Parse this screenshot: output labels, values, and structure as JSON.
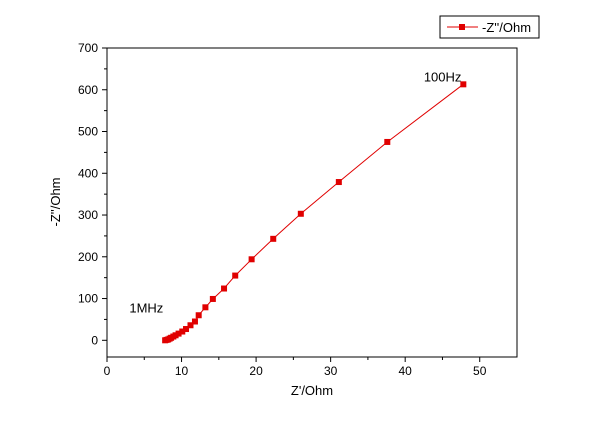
{
  "chart_data": {
    "type": "line",
    "xlabel": "Z'/Ohm",
    "ylabel": "-Z''/Ohm",
    "xlim": [
      0,
      55
    ],
    "ylim": [
      -40,
      700
    ],
    "x_ticks": [
      0,
      10,
      20,
      30,
      40,
      50
    ],
    "y_ticks": [
      0,
      100,
      200,
      300,
      400,
      500,
      600,
      700
    ],
    "grid": false,
    "legend_position": "top-right",
    "series": [
      {
        "name": "-Z''/Ohm",
        "color": "#e00000",
        "marker": "square",
        "x": [
          7.8,
          8.0,
          8.2,
          8.4,
          8.6,
          8.9,
          9.2,
          9.6,
          10.1,
          10.6,
          11.2,
          11.8,
          12.3,
          13.2,
          14.2,
          15.7,
          17.2,
          19.4,
          22.3,
          26.0,
          31.1,
          37.6,
          47.8
        ],
        "y": [
          0,
          1,
          2,
          4,
          6,
          9,
          12,
          16,
          21,
          27,
          36,
          45,
          60,
          79,
          99,
          124,
          155,
          194,
          243,
          303,
          379,
          475,
          613
        ]
      }
    ],
    "annotations": [
      {
        "label": "1MHz",
        "x": 3.0,
        "y": 67
      },
      {
        "label": "100Hz",
        "x": 42.5,
        "y": 620
      }
    ]
  }
}
